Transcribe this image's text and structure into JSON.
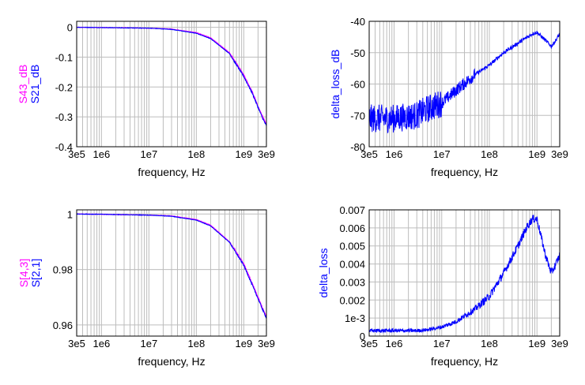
{
  "chart_data": [
    {
      "type": "line",
      "xscale": "log",
      "xlim": [
        300000,
        3000000000
      ],
      "ylim": [
        -0.4,
        0.02
      ],
      "xticks": [
        300000,
        1000000,
        10000000,
        100000000,
        1000000000,
        3000000000
      ],
      "xtick_labels": [
        "3e5",
        "1e6",
        "1e7",
        "1e8",
        "1e9",
        "3e9"
      ],
      "yticks": [
        0,
        -0.1,
        -0.2,
        -0.3,
        -0.4
      ],
      "ytick_labels": [
        "0",
        "-0.1",
        "-0.2",
        "-0.3",
        "-0.4"
      ],
      "xlabel": "frequency, Hz",
      "ylabel_lines": [
        "S43_dB",
        "S21_dB"
      ],
      "grid": true,
      "series": [
        {
          "name": "S43_dB",
          "color": "#ff00ff",
          "x": [
            300000,
            1000000,
            10000000,
            30000000,
            100000000,
            200000000,
            500000000,
            1000000000,
            1500000000,
            2000000000,
            2500000000,
            3000000000
          ],
          "y": [
            0,
            -0.001,
            -0.003,
            -0.006,
            -0.018,
            -0.035,
            -0.085,
            -0.16,
            -0.215,
            -0.265,
            -0.3,
            -0.325
          ]
        },
        {
          "name": "S21_dB",
          "color": "#0000ff",
          "x": [
            300000,
            1000000,
            10000000,
            30000000,
            100000000,
            200000000,
            500000000,
            1000000000,
            1500000000,
            2000000000,
            2500000000,
            3000000000
          ],
          "y": [
            0,
            -0.001,
            -0.003,
            -0.007,
            -0.02,
            -0.038,
            -0.088,
            -0.165,
            -0.22,
            -0.268,
            -0.305,
            -0.33
          ]
        }
      ]
    },
    {
      "type": "line",
      "xscale": "log",
      "xlim": [
        300000,
        3000000000
      ],
      "ylim": [
        -80,
        -40
      ],
      "xticks": [
        300000,
        1000000,
        10000000,
        100000000,
        1000000000,
        3000000000
      ],
      "xtick_labels": [
        "3e5",
        "1e6",
        "1e7",
        "1e8",
        "1e9",
        "3e9"
      ],
      "yticks": [
        -40,
        -50,
        -60,
        -70,
        -80
      ],
      "ytick_labels": [
        "-40",
        "-50",
        "-60",
        "-70",
        "-80"
      ],
      "xlabel": "frequency, Hz",
      "ylabel_lines": [
        "delta_loss_dB"
      ],
      "grid": true,
      "series": [
        {
          "name": "delta_loss_dB",
          "color": "#0000ff",
          "x": [
            300000,
            1000000,
            3000000,
            5000000,
            10000000,
            20000000,
            50000000,
            100000000,
            200000000,
            500000000,
            800000000,
            1000000000,
            1500000000,
            2000000000,
            2500000000,
            3000000000
          ],
          "y": [
            -71,
            -71,
            -70,
            -68,
            -66,
            -62,
            -57,
            -54,
            -50,
            -46,
            -44,
            -43.5,
            -46,
            -48,
            -46,
            -44
          ]
        }
      ]
    },
    {
      "type": "line",
      "xscale": "log",
      "xlim": [
        300000,
        3000000000
      ],
      "ylim": [
        0.956,
        1.0015
      ],
      "xticks": [
        300000,
        1000000,
        10000000,
        100000000,
        1000000000,
        3000000000
      ],
      "xtick_labels": [
        "3e5",
        "1e6",
        "1e7",
        "1e8",
        "1e9",
        "3e9"
      ],
      "yticks": [
        1,
        0.98,
        0.96
      ],
      "ytick_labels": [
        "1",
        "0.98",
        "0.96"
      ],
      "xlabel": "frequency, Hz",
      "ylabel_lines": [
        "S[4,3]",
        "S[2,1]"
      ],
      "grid": true,
      "series": [
        {
          "name": "S[4,3]",
          "color": "#ff00ff",
          "x": [
            300000,
            1000000,
            10000000,
            30000000,
            100000000,
            200000000,
            500000000,
            1000000000,
            1500000000,
            2000000000,
            2500000000,
            3000000000
          ],
          "y": [
            1.0,
            0.9999,
            0.9996,
            0.9993,
            0.998,
            0.996,
            0.99,
            0.982,
            0.975,
            0.97,
            0.966,
            0.963
          ]
        },
        {
          "name": "S[2,1]",
          "color": "#0000ff",
          "x": [
            300000,
            1000000,
            10000000,
            30000000,
            100000000,
            200000000,
            500000000,
            1000000000,
            1500000000,
            2000000000,
            2500000000,
            3000000000
          ],
          "y": [
            1.0,
            0.9999,
            0.9996,
            0.9992,
            0.9978,
            0.9957,
            0.9898,
            0.9815,
            0.9745,
            0.9695,
            0.9655,
            0.9625
          ]
        }
      ]
    },
    {
      "type": "line",
      "xscale": "log",
      "xlim": [
        300000,
        3000000000
      ],
      "ylim": [
        0,
        0.007
      ],
      "xticks": [
        300000,
        1000000,
        10000000,
        100000000,
        1000000000,
        3000000000
      ],
      "xtick_labels": [
        "3e5",
        "1e6",
        "1e7",
        "1e8",
        "1e9",
        "3e9"
      ],
      "yticks": [
        0.007,
        0.006,
        0.005,
        0.004,
        0.003,
        0.002,
        0.001,
        0
      ],
      "ytick_labels": [
        "0.007",
        "0.006",
        "0.005",
        "0.004",
        "0.003",
        "0.002",
        "1e-3",
        "0"
      ],
      "xlabel": "frequency, Hz",
      "ylabel_lines": [
        "delta_loss"
      ],
      "grid": true,
      "series": [
        {
          "name": "delta_loss",
          "color": "#0000ff",
          "x": [
            300000,
            1000000,
            3000000,
            5000000,
            10000000,
            20000000,
            50000000,
            100000000,
            200000000,
            400000000,
            600000000,
            800000000,
            1000000000,
            1500000000,
            2000000000,
            2500000000,
            3000000000
          ],
          "y": [
            0.0003,
            0.0003,
            0.0003,
            0.00035,
            0.0005,
            0.0008,
            0.0015,
            0.0022,
            0.0035,
            0.005,
            0.006,
            0.0065,
            0.0065,
            0.0045,
            0.0035,
            0.004,
            0.0045
          ]
        }
      ]
    }
  ]
}
